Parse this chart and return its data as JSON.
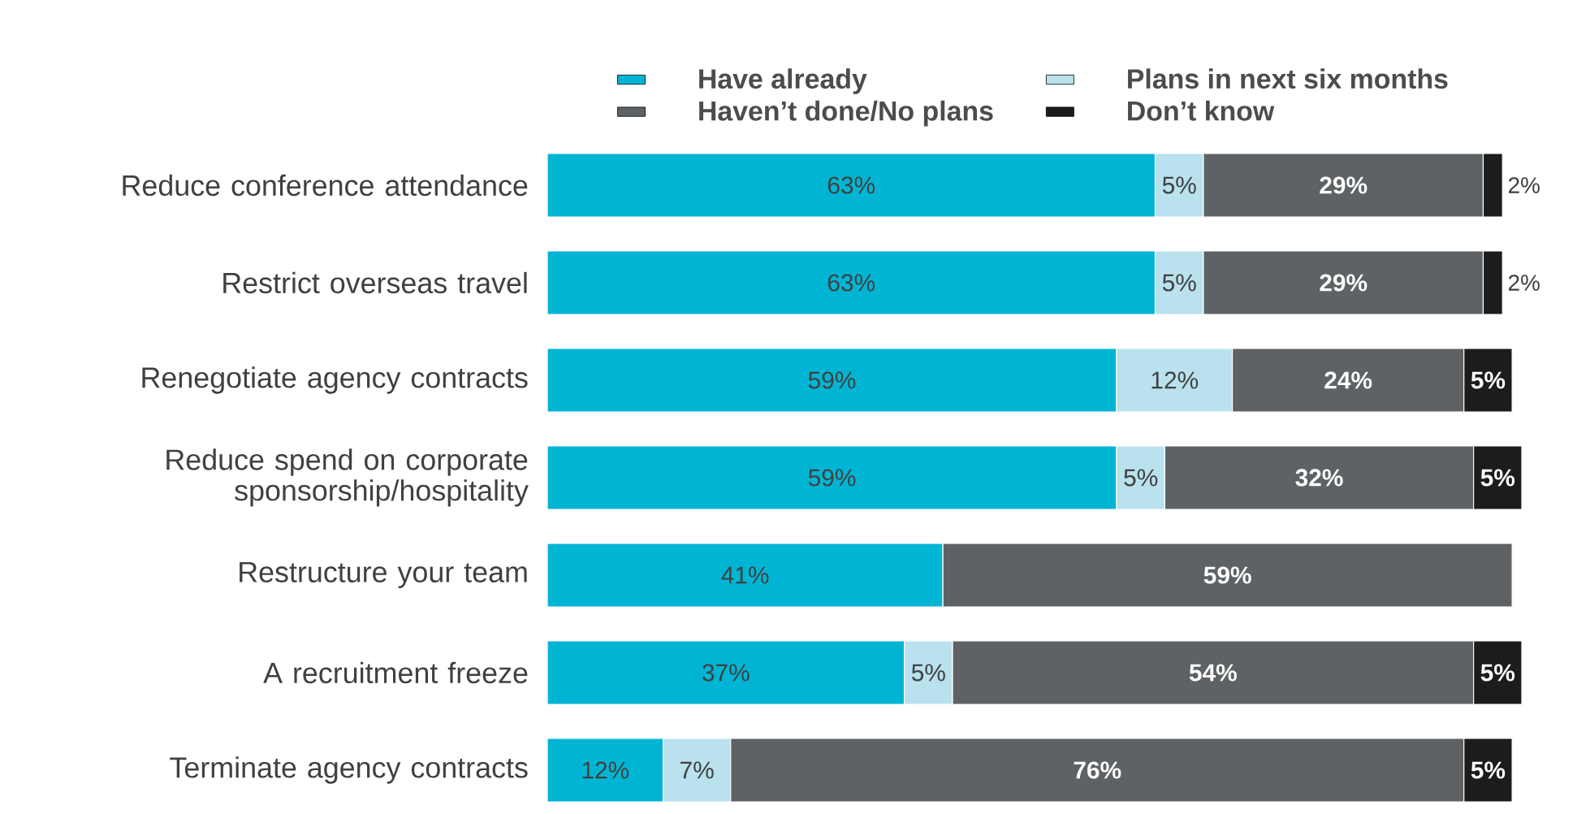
{
  "chart_data": {
    "type": "bar",
    "orientation": "horizontal",
    "stacked": true,
    "legend": "top",
    "categories": [
      "Reduce conference attendance",
      "Restrict overseas travel",
      "Renegotiate agency contracts",
      "Reduce spend on corporate sponsorship/hospitality",
      "Restructure your team",
      "A recruitment freeze",
      "Terminate agency contracts"
    ],
    "series": [
      {
        "name": "Have already",
        "color": "#00b5d3",
        "values": [
          63,
          63,
          59,
          59,
          41,
          37,
          12
        ],
        "value_labels": [
          "63%",
          "63%",
          "59%",
          "59%",
          "41%",
          "37%",
          "12%"
        ]
      },
      {
        "name": "Plans in next six months",
        "color": "#b9e1ee",
        "values": [
          5,
          5,
          12,
          5,
          null,
          5,
          7
        ],
        "value_labels": [
          "5%",
          "5%",
          "12%",
          "5%",
          null,
          "5%",
          "7%"
        ]
      },
      {
        "name": "Haven’t done/No plans",
        "color": "#5e6264",
        "values": [
          29,
          29,
          24,
          32,
          59,
          54,
          76
        ],
        "value_labels": [
          "29%",
          "29%",
          "24%",
          "32%",
          "59%",
          "54%",
          "76%"
        ]
      },
      {
        "name": "Don’t know",
        "color": "#1c1c1c",
        "values": [
          2,
          2,
          5,
          5,
          null,
          5,
          5
        ],
        "value_labels": [
          "2%",
          "2%",
          "5%",
          "5%",
          null,
          "5%",
          "5%"
        ]
      }
    ]
  }
}
